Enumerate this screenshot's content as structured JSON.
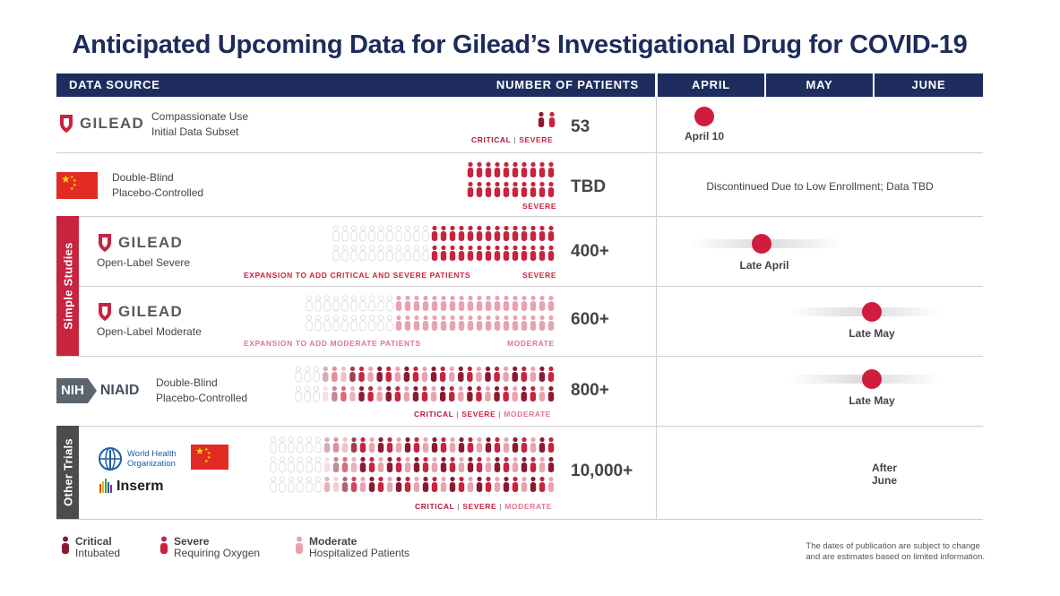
{
  "title": "Anticipated Upcoming Data for Gilead’s Investigational Drug for COVID-19",
  "header": {
    "data_source": "DATA SOURCE",
    "number_of_patients": "NUMBER OF PATIENTS",
    "months": [
      "APRIL",
      "MAY",
      "JUNE"
    ],
    "color": "#1e2d5e"
  },
  "colors": {
    "critical": "#8b1a30",
    "severe": "#c8233f",
    "moderate": "#e8a3b0",
    "milestone": "#d01c3d"
  },
  "groups": {
    "simple_studies": "Simple Studies",
    "other_trials": "Other Trials"
  },
  "logos": {
    "gilead": "GILEAD",
    "nih": "NIH",
    "niaid": "NIAID",
    "who": "World Health Organization",
    "inserm": "Inserm"
  },
  "rows": [
    {
      "desc1": "Compassionate Use",
      "desc2": "Initial Data Subset",
      "labels": [
        "CRITICAL",
        "SEVERE"
      ],
      "count": "53",
      "timing": "April 10"
    },
    {
      "desc1": "Double-Blind",
      "desc2": "Placebo-Controlled",
      "labels": [
        "SEVERE"
      ],
      "count": "TBD",
      "timing": "Discontinued Due to Low Enrollment; Data TBD"
    },
    {
      "desc1": "Open-Label Severe",
      "expansion": "EXPANSION TO ADD CRITICAL AND SEVERE PATIENTS",
      "labels": [
        "SEVERE"
      ],
      "count": "400+",
      "timing": "Late April"
    },
    {
      "desc1": "Open-Label Moderate",
      "expansion": "EXPANSION TO ADD MODERATE PATIENTS",
      "labels": [
        "MODERATE"
      ],
      "count": "600+",
      "timing": "Late May"
    },
    {
      "desc1": "Double-Blind",
      "desc2": "Placebo-Controlled",
      "labels": [
        "CRITICAL",
        "SEVERE",
        "MODERATE"
      ],
      "count": "800+",
      "timing": "Late May"
    },
    {
      "labels": [
        "CRITICAL",
        "SEVERE",
        "MODERATE"
      ],
      "count": "10,000+",
      "timing1": "After",
      "timing2": "June"
    }
  ],
  "legend": [
    {
      "title": "Critical",
      "sub": "Intubated",
      "color": "#8b1a30"
    },
    {
      "title": "Severe",
      "sub": "Requiring Oxygen",
      "color": "#c8233f"
    },
    {
      "title": "Moderate",
      "sub": "Hospitalized Patients",
      "color": "#e8a3b0"
    }
  ],
  "note": {
    "line1": "The dates of publication are subject to change",
    "line2": "and are estimates based on limited information."
  }
}
